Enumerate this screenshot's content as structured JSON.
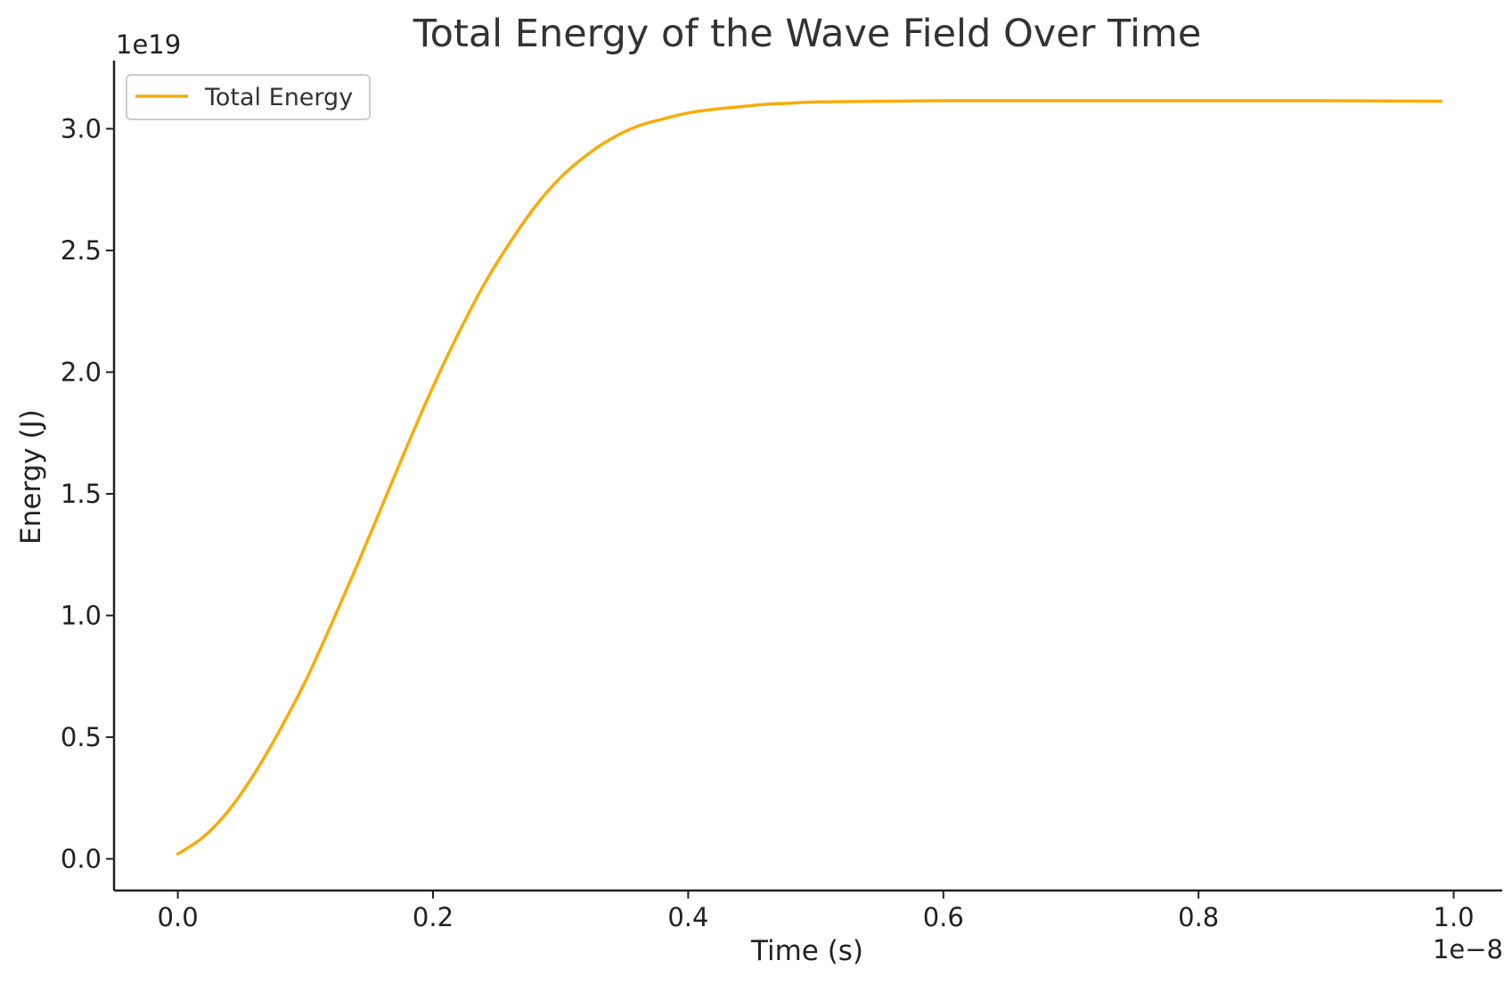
{
  "chart_data": {
    "type": "line",
    "title": "Total Energy of the Wave Field Over Time",
    "xlabel": "Time (s)",
    "ylabel": "Energy (J)",
    "x_offset_label": "1e−8",
    "y_offset_label": "1e19",
    "x_scale_factor": 1e-08,
    "y_scale_factor": 1e+19,
    "xlim": [
      -0.05,
      1.038
    ],
    "ylim": [
      -0.13,
      3.28
    ],
    "x_ticks": [
      {
        "value": 0.0,
        "label": "0.0"
      },
      {
        "value": 0.2,
        "label": "0.2"
      },
      {
        "value": 0.4,
        "label": "0.4"
      },
      {
        "value": 0.6,
        "label": "0.6"
      },
      {
        "value": 0.8,
        "label": "0.8"
      },
      {
        "value": 1.0,
        "label": "1.0"
      }
    ],
    "y_ticks": [
      {
        "value": 0.0,
        "label": "0.0"
      },
      {
        "value": 0.5,
        "label": "0.5"
      },
      {
        "value": 1.0,
        "label": "1.0"
      },
      {
        "value": 1.5,
        "label": "1.5"
      },
      {
        "value": 2.0,
        "label": "2.0"
      },
      {
        "value": 2.5,
        "label": "2.5"
      },
      {
        "value": 3.0,
        "label": "3.0"
      }
    ],
    "grid": false,
    "legend_position": "top-left",
    "series": [
      {
        "name": "Total Energy",
        "color": "#F7AC08",
        "x": [
          0.0,
          0.02,
          0.04,
          0.06,
          0.08,
          0.1,
          0.12,
          0.14,
          0.16,
          0.18,
          0.2,
          0.22,
          0.24,
          0.26,
          0.28,
          0.3,
          0.32,
          0.34,
          0.36,
          0.38,
          0.4,
          0.42,
          0.44,
          0.46,
          0.48,
          0.5,
          0.55,
          0.6,
          0.65,
          0.7,
          0.75,
          0.8,
          0.85,
          0.9,
          0.95,
          0.99
        ],
        "y": [
          0.02,
          0.09,
          0.2,
          0.35,
          0.53,
          0.73,
          0.96,
          1.2,
          1.45,
          1.7,
          1.94,
          2.16,
          2.36,
          2.53,
          2.68,
          2.8,
          2.89,
          2.96,
          3.01,
          3.04,
          3.065,
          3.08,
          3.09,
          3.1,
          3.105,
          3.11,
          3.113,
          3.115,
          3.115,
          3.115,
          3.115,
          3.115,
          3.115,
          3.115,
          3.114,
          3.113
        ]
      }
    ]
  }
}
